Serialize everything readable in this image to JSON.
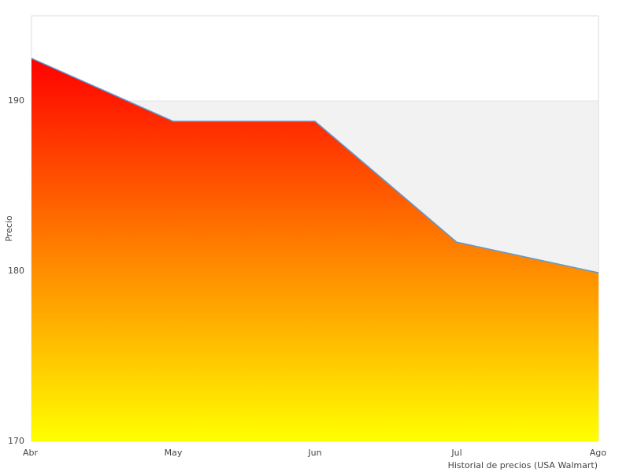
{
  "chart_data": {
    "type": "area",
    "x_label": "Historial de precios (USA Walmart)",
    "y_label": "Precio",
    "categories": [
      "Abr",
      "May",
      "Jun",
      "Jul",
      "Ago"
    ],
    "series": [
      {
        "name": "Precio",
        "color": "#5b9bd5",
        "gradient": [
          "#ff0000",
          "#ffff00"
        ],
        "values": [
          192.5,
          188.8,
          188.8,
          181.7,
          179.9
        ]
      }
    ],
    "ylim": [
      170,
      195
    ],
    "yticks": [
      170,
      180,
      190
    ],
    "grid": true,
    "band_color": "#f2f2f2"
  }
}
